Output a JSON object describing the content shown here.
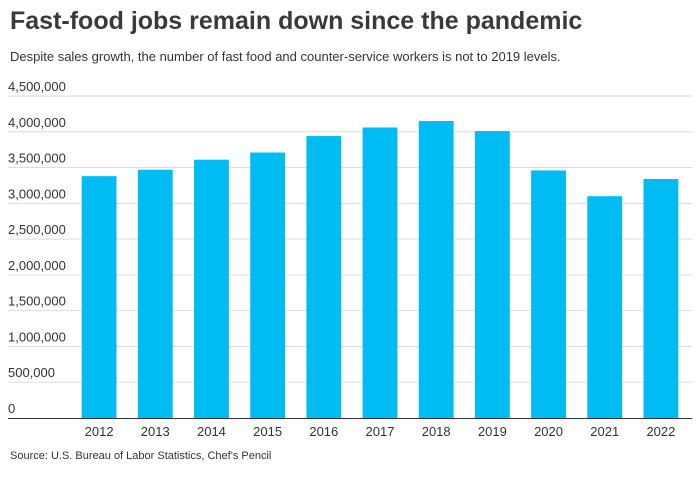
{
  "header": {
    "title": "Fast-food jobs remain down since the pandemic",
    "subtitle": "Despite sales growth, the number of fast food and counter-service workers is not to 2019 levels."
  },
  "footer": {
    "source": "Source: U.S. Bureau of Labor Statistics, Chef's Pencil"
  },
  "chart_data": {
    "type": "bar",
    "title": "Fast-food jobs remain down since the pandemic",
    "subtitle": "Despite sales growth, the number of fast food and counter-service workers is not to 2019 levels.",
    "categories": [
      "2012",
      "2013",
      "2014",
      "2015",
      "2016",
      "2017",
      "2018",
      "2019",
      "2020",
      "2021",
      "2022"
    ],
    "values": [
      3380000,
      3470000,
      3610000,
      3710000,
      3940000,
      4060000,
      4150000,
      4010000,
      3460000,
      3100000,
      3340000
    ],
    "yticks": [
      "0",
      "500,000",
      "1,000,000",
      "1,500,000",
      "2,000,000",
      "2,500,000",
      "3,000,000",
      "3,500,000",
      "4,000,000",
      "4,500,000"
    ],
    "ylim": [
      0,
      4500000
    ],
    "xlabel": "",
    "ylabel": "",
    "grid": true,
    "legend": "none",
    "bar_color": "#00bcf2",
    "grid_color": "#dddddd",
    "axis_color": "#333333"
  }
}
